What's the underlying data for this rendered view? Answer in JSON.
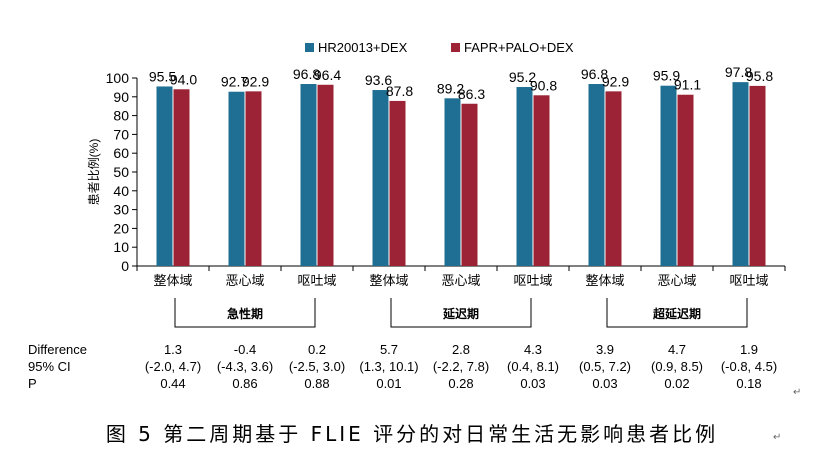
{
  "chart_data": {
    "type": "bar",
    "ylabel": "患者比例(%)",
    "ylim": [
      0,
      100
    ],
    "yticks": [
      0,
      10,
      20,
      30,
      40,
      50,
      60,
      70,
      80,
      90,
      100
    ],
    "grid": false,
    "legend_position": "top",
    "categories": [
      "整体域",
      "恶心域",
      "呕吐域",
      "整体域",
      "恶心域",
      "呕吐域",
      "整体域",
      "恶心域",
      "呕吐域"
    ],
    "series": [
      {
        "name": "HR20013+DEX",
        "color": "#1f6f94",
        "values": [
          95.5,
          92.7,
          96.8,
          93.6,
          89.2,
          95.2,
          96.8,
          95.9,
          97.8
        ],
        "labels": [
          "95.5",
          "92.7",
          "96.8",
          "93.6",
          "89.2",
          "95.2",
          "96.8",
          "95.9",
          "97.8"
        ]
      },
      {
        "name": "FAPR+PALO+DEX",
        "color": "#9b2335",
        "values": [
          94.0,
          92.9,
          96.4,
          87.8,
          86.3,
          90.8,
          92.9,
          91.1,
          95.8
        ],
        "labels": [
          "94.0",
          "92.9",
          "96.4",
          "87.8",
          "86.3",
          "90.8",
          "92.9",
          "91.1",
          "95.8"
        ]
      }
    ],
    "groups": [
      {
        "label": "急性期",
        "start": 0,
        "end": 2
      },
      {
        "label": "延迟期",
        "start": 3,
        "end": 5
      },
      {
        "label": "超延迟期",
        "start": 6,
        "end": 8
      }
    ]
  },
  "stats": {
    "row_labels": [
      "Difference",
      "95% CI",
      "P"
    ],
    "difference": [
      "1.3",
      "-0.4",
      "0.2",
      "5.7",
      "2.8",
      "4.3",
      "3.9",
      "4.7",
      "1.9"
    ],
    "ci": [
      "(-2.0, 4.7)",
      "(-4.3, 3.6)",
      "(-2.5, 3.0)",
      "(1.3, 10.1)",
      "(-2.2, 7.8)",
      "(0.4, 8.1)",
      "(0.5, 7.2)",
      "(0.9, 8.5)",
      "(-0.8, 4.5)"
    ],
    "p": [
      "0.44",
      "0.86",
      "0.88",
      "0.01",
      "0.28",
      "0.03",
      "0.03",
      "0.02",
      "0.18"
    ]
  },
  "caption": "图 5  第二周期基于 FLIE 评分的对日常生活无影响患者比例",
  "edit_mark": "↵"
}
